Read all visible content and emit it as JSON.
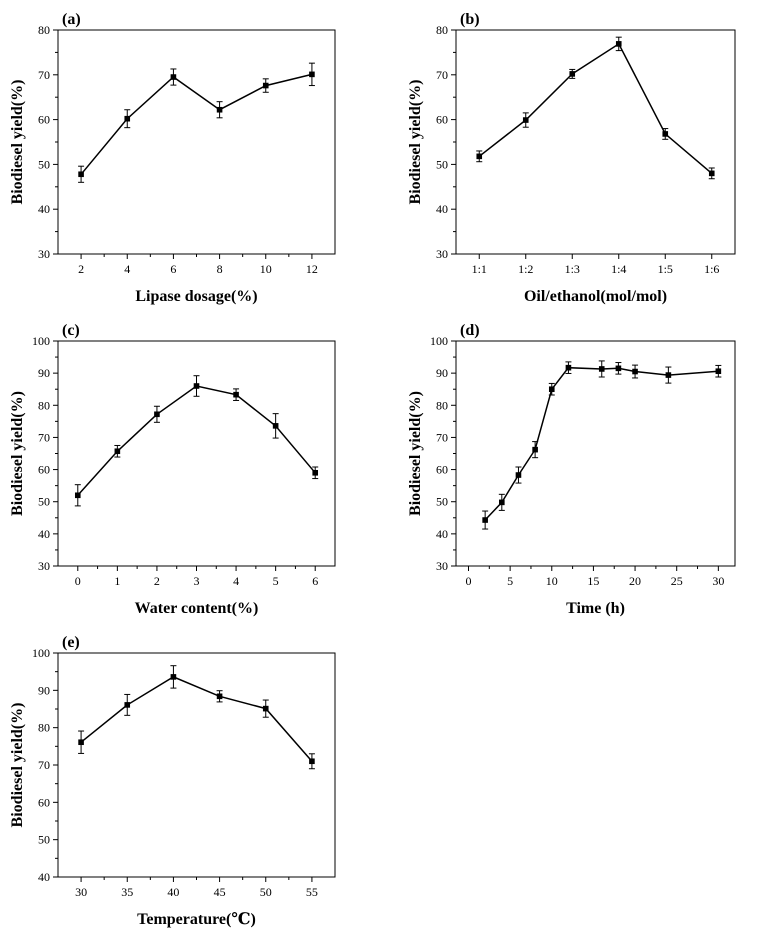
{
  "chart_data": [
    {
      "type": "line",
      "panel": "(a)",
      "xlabel": "Lipase dosage(%)",
      "ylabel": "Biodiesel yield(%)",
      "x": [
        2,
        4,
        6,
        8,
        10,
        12
      ],
      "x_ticks": [
        "2",
        "4",
        "6",
        "8",
        "10",
        "12"
      ],
      "xlim": [
        1,
        13
      ],
      "ylim": [
        30,
        80
      ],
      "y_ticks": [
        30,
        40,
        50,
        60,
        70,
        80
      ],
      "series": [
        {
          "values": [
            47.8,
            60.2,
            69.5,
            62.2,
            67.6,
            70.1
          ],
          "errors": [
            1.8,
            2.0,
            1.8,
            1.8,
            1.5,
            2.5
          ]
        }
      ]
    },
    {
      "type": "line",
      "panel": "(b)",
      "xlabel": "Oil/ethanol(mol/mol)",
      "ylabel": "Biodiesel yield(%)",
      "categories": [
        "1:1",
        "1:2",
        "1:3",
        "1:4",
        "1:5",
        "1:6"
      ],
      "ylim": [
        30,
        80
      ],
      "y_ticks": [
        30,
        40,
        50,
        60,
        70,
        80
      ],
      "series": [
        {
          "values": [
            51.8,
            59.9,
            70.2,
            76.9,
            56.8,
            48.0
          ],
          "errors": [
            1.2,
            1.6,
            1.0,
            1.5,
            1.2,
            1.2
          ]
        }
      ]
    },
    {
      "type": "line",
      "panel": "(c)",
      "xlabel": "Water content(%)",
      "ylabel": "Biodiesel yield(%)",
      "x": [
        0,
        1,
        2,
        3,
        4,
        5,
        6
      ],
      "x_ticks": [
        "0",
        "1",
        "2",
        "3",
        "4",
        "5",
        "6"
      ],
      "xlim": [
        -0.5,
        6.5
      ],
      "ylim": [
        30,
        100
      ],
      "y_ticks": [
        30,
        40,
        50,
        60,
        70,
        80,
        90,
        100
      ],
      "series": [
        {
          "values": [
            52.0,
            65.7,
            77.2,
            86.0,
            83.3,
            73.6,
            59.0
          ],
          "errors": [
            3.3,
            1.8,
            2.5,
            3.2,
            1.8,
            3.8,
            1.8
          ]
        }
      ]
    },
    {
      "type": "line",
      "panel": "(d)",
      "xlabel": "Time (h)",
      "ylabel": "Biodiesel yield(%)",
      "x": [
        2,
        4,
        6,
        8,
        10,
        12,
        16,
        18,
        20,
        24,
        30
      ],
      "x_ticks": [
        "0",
        "5",
        "10",
        "15",
        "20",
        "25",
        "30"
      ],
      "xlim": [
        -1.5,
        32
      ],
      "ylim": [
        30,
        100
      ],
      "y_ticks": [
        30,
        40,
        50,
        60,
        70,
        80,
        90,
        100
      ],
      "series": [
        {
          "values": [
            44.3,
            49.8,
            58.3,
            66.2,
            85.0,
            91.7,
            91.3,
            91.5,
            90.5,
            89.4,
            90.6
          ],
          "errors": [
            2.8,
            2.5,
            2.5,
            2.5,
            1.8,
            1.8,
            2.5,
            1.8,
            2.0,
            2.5,
            1.8
          ]
        }
      ]
    },
    {
      "type": "line",
      "panel": "(e)",
      "xlabel": "Temperature(℃)",
      "ylabel": "Biodiesel yield(%)",
      "x": [
        30,
        35,
        40,
        45,
        50,
        55
      ],
      "x_ticks": [
        "30",
        "35",
        "40",
        "45",
        "50",
        "55"
      ],
      "xlim": [
        27.5,
        57.5
      ],
      "ylim": [
        40,
        100
      ],
      "y_ticks": [
        40,
        50,
        60,
        70,
        80,
        90,
        100
      ],
      "series": [
        {
          "values": [
            76.1,
            86.1,
            93.6,
            88.4,
            85.1,
            71.0
          ],
          "errors": [
            3.0,
            2.8,
            3.0,
            1.5,
            2.3,
            2.0
          ]
        }
      ]
    }
  ]
}
